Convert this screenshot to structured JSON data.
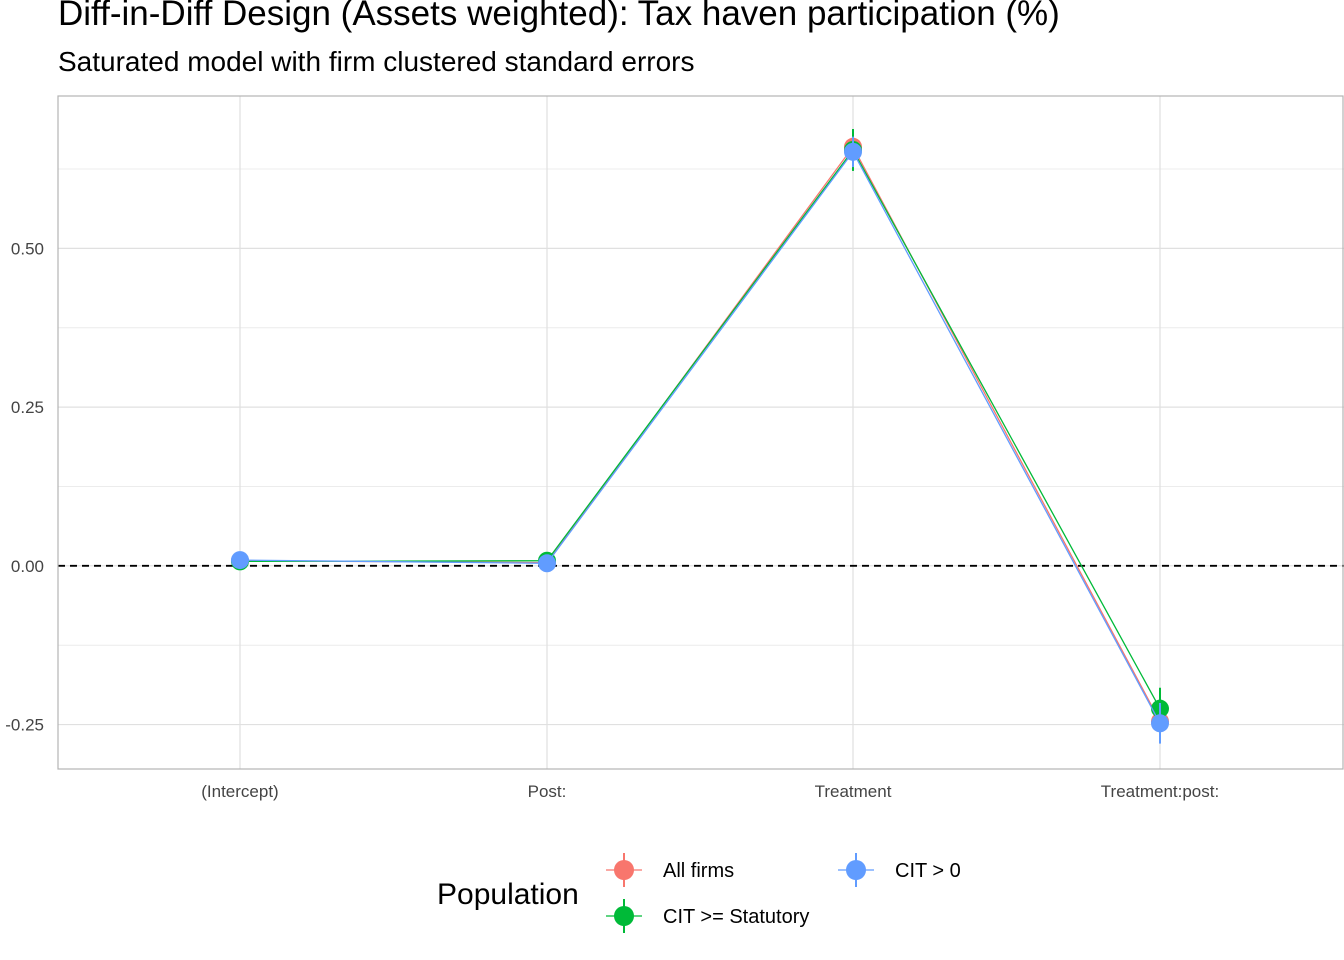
{
  "title": "Diff-in-Diff Design (Assets weighted): Tax haven participation (%)",
  "subtitle": "Saturated model with firm clustered standard errors",
  "chart_data": {
    "type": "line",
    "categories": [
      "(Intercept)",
      "Post:",
      "Treatment",
      "Treatment:post:"
    ],
    "ylim": [
      -0.32,
      0.74
    ],
    "yticks": [
      -0.25,
      0.0,
      0.25,
      0.5
    ],
    "ytick_labels": [
      "-0.25",
      "0.00",
      "0.25",
      "0.50"
    ],
    "reference_line": 0.0,
    "grid": true,
    "legend": {
      "title": "Population",
      "position": "bottom"
    },
    "series": [
      {
        "name": "All firms",
        "color": "#F8766D",
        "values": [
          0.008,
          0.005,
          0.66,
          -0.245
        ],
        "ci_low": [
          0.004,
          0.001,
          0.635,
          -0.27
        ],
        "ci_high": [
          0.012,
          0.009,
          0.685,
          -0.22
        ]
      },
      {
        "name": "CIT >= Statutory",
        "color": "#00BA38",
        "values": [
          0.007,
          0.008,
          0.655,
          -0.225
        ],
        "ci_low": [
          0.002,
          0.003,
          0.622,
          -0.258
        ],
        "ci_high": [
          0.012,
          0.013,
          0.688,
          -0.192
        ]
      },
      {
        "name": "CIT > 0",
        "color": "#619CFF",
        "values": [
          0.009,
          0.004,
          0.652,
          -0.248
        ],
        "ci_low": [
          0.005,
          0.0,
          0.628,
          -0.28
        ],
        "ci_high": [
          0.013,
          0.008,
          0.676,
          -0.216
        ]
      }
    ]
  }
}
